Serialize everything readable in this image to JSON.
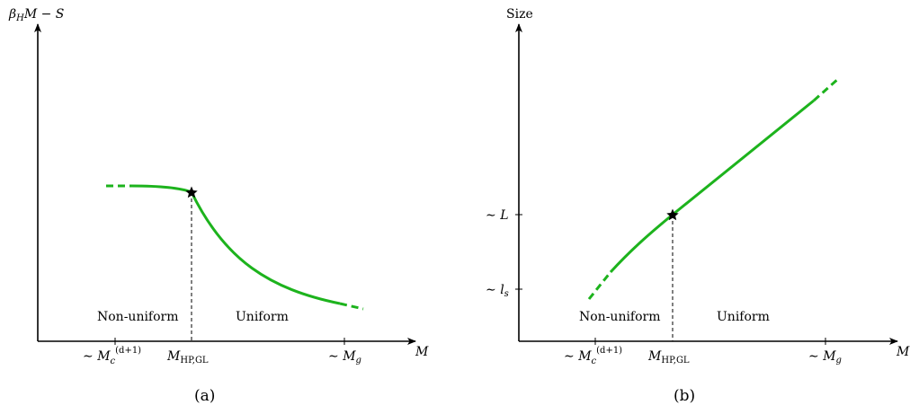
{
  "panel_a": {
    "y_axis_label": "βHM − S",
    "x_axis_label": "M",
    "ticks": {
      "left": "∼ Mc(d+1)",
      "mid": "MHP,GL",
      "right": "∼ Mg"
    },
    "regions": {
      "left": "Non-uniform",
      "right": "Uniform"
    },
    "caption": "(a)"
  },
  "panel_b": {
    "y_axis_label": "Size",
    "x_axis_label": "M",
    "y_ticks": {
      "upper": "∼ L",
      "lower": "∼ ls"
    },
    "ticks": {
      "left": "∼ Mc(d+1)",
      "mid": "MHP,GL",
      "right": "∼ Mg"
    },
    "regions": {
      "left": "Non-uniform",
      "right": "Uniform"
    },
    "caption": "(b)"
  },
  "colors": {
    "curve": "#1db31d",
    "axis": "#000000",
    "marker": "#000000"
  }
}
